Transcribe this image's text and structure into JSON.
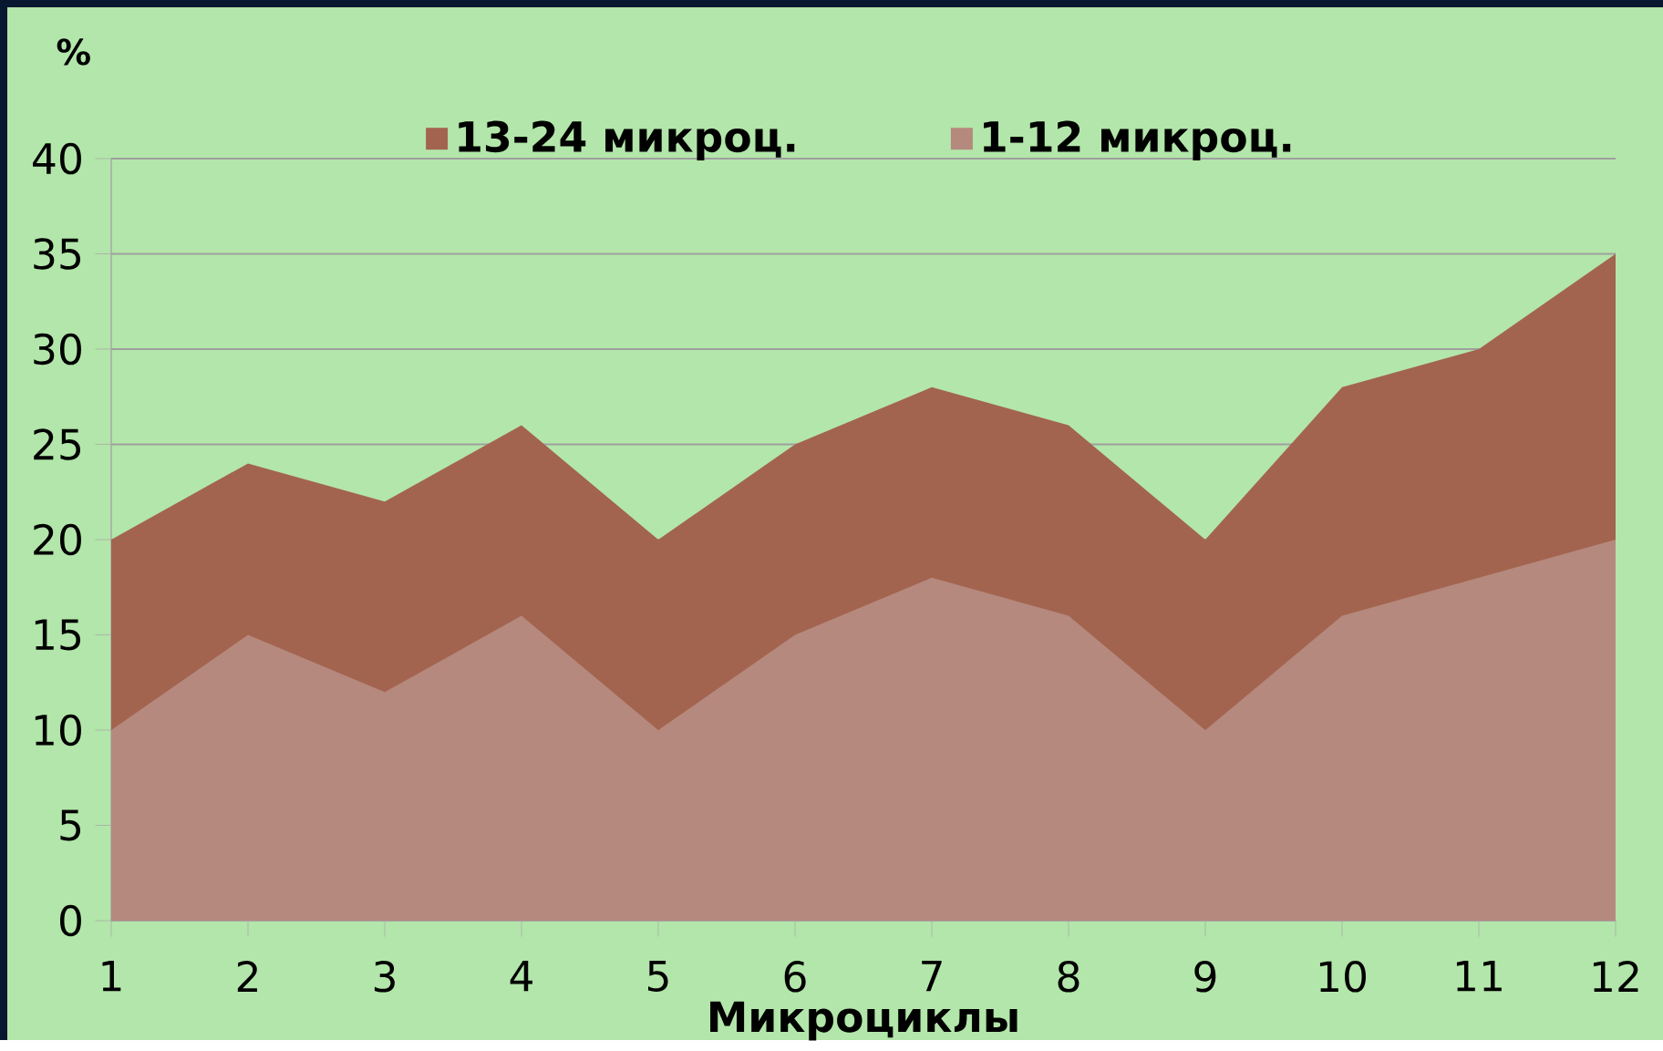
{
  "chart_data": {
    "type": "area",
    "xlabel": "Микроциклы",
    "ylabel": "%",
    "categories": [
      "1",
      "2",
      "3",
      "4",
      "5",
      "6",
      "7",
      "8",
      "9",
      "10",
      "11",
      "12"
    ],
    "series": [
      {
        "name": "13-24 микроц.",
        "color": "#a3644f",
        "values": [
          20,
          24,
          22,
          26,
          20,
          25,
          28,
          26,
          20,
          28,
          30,
          35
        ]
      },
      {
        "name": "1-12 микроц.",
        "color": "#b5897d",
        "values": [
          10,
          15,
          12,
          16,
          10,
          15,
          18,
          16,
          10,
          16,
          18,
          20
        ]
      }
    ],
    "ylim": [
      0,
      40
    ],
    "yticks": [
      0,
      5,
      10,
      15,
      20,
      25,
      30,
      35,
      40
    ],
    "grid": "y",
    "legend": "top"
  }
}
